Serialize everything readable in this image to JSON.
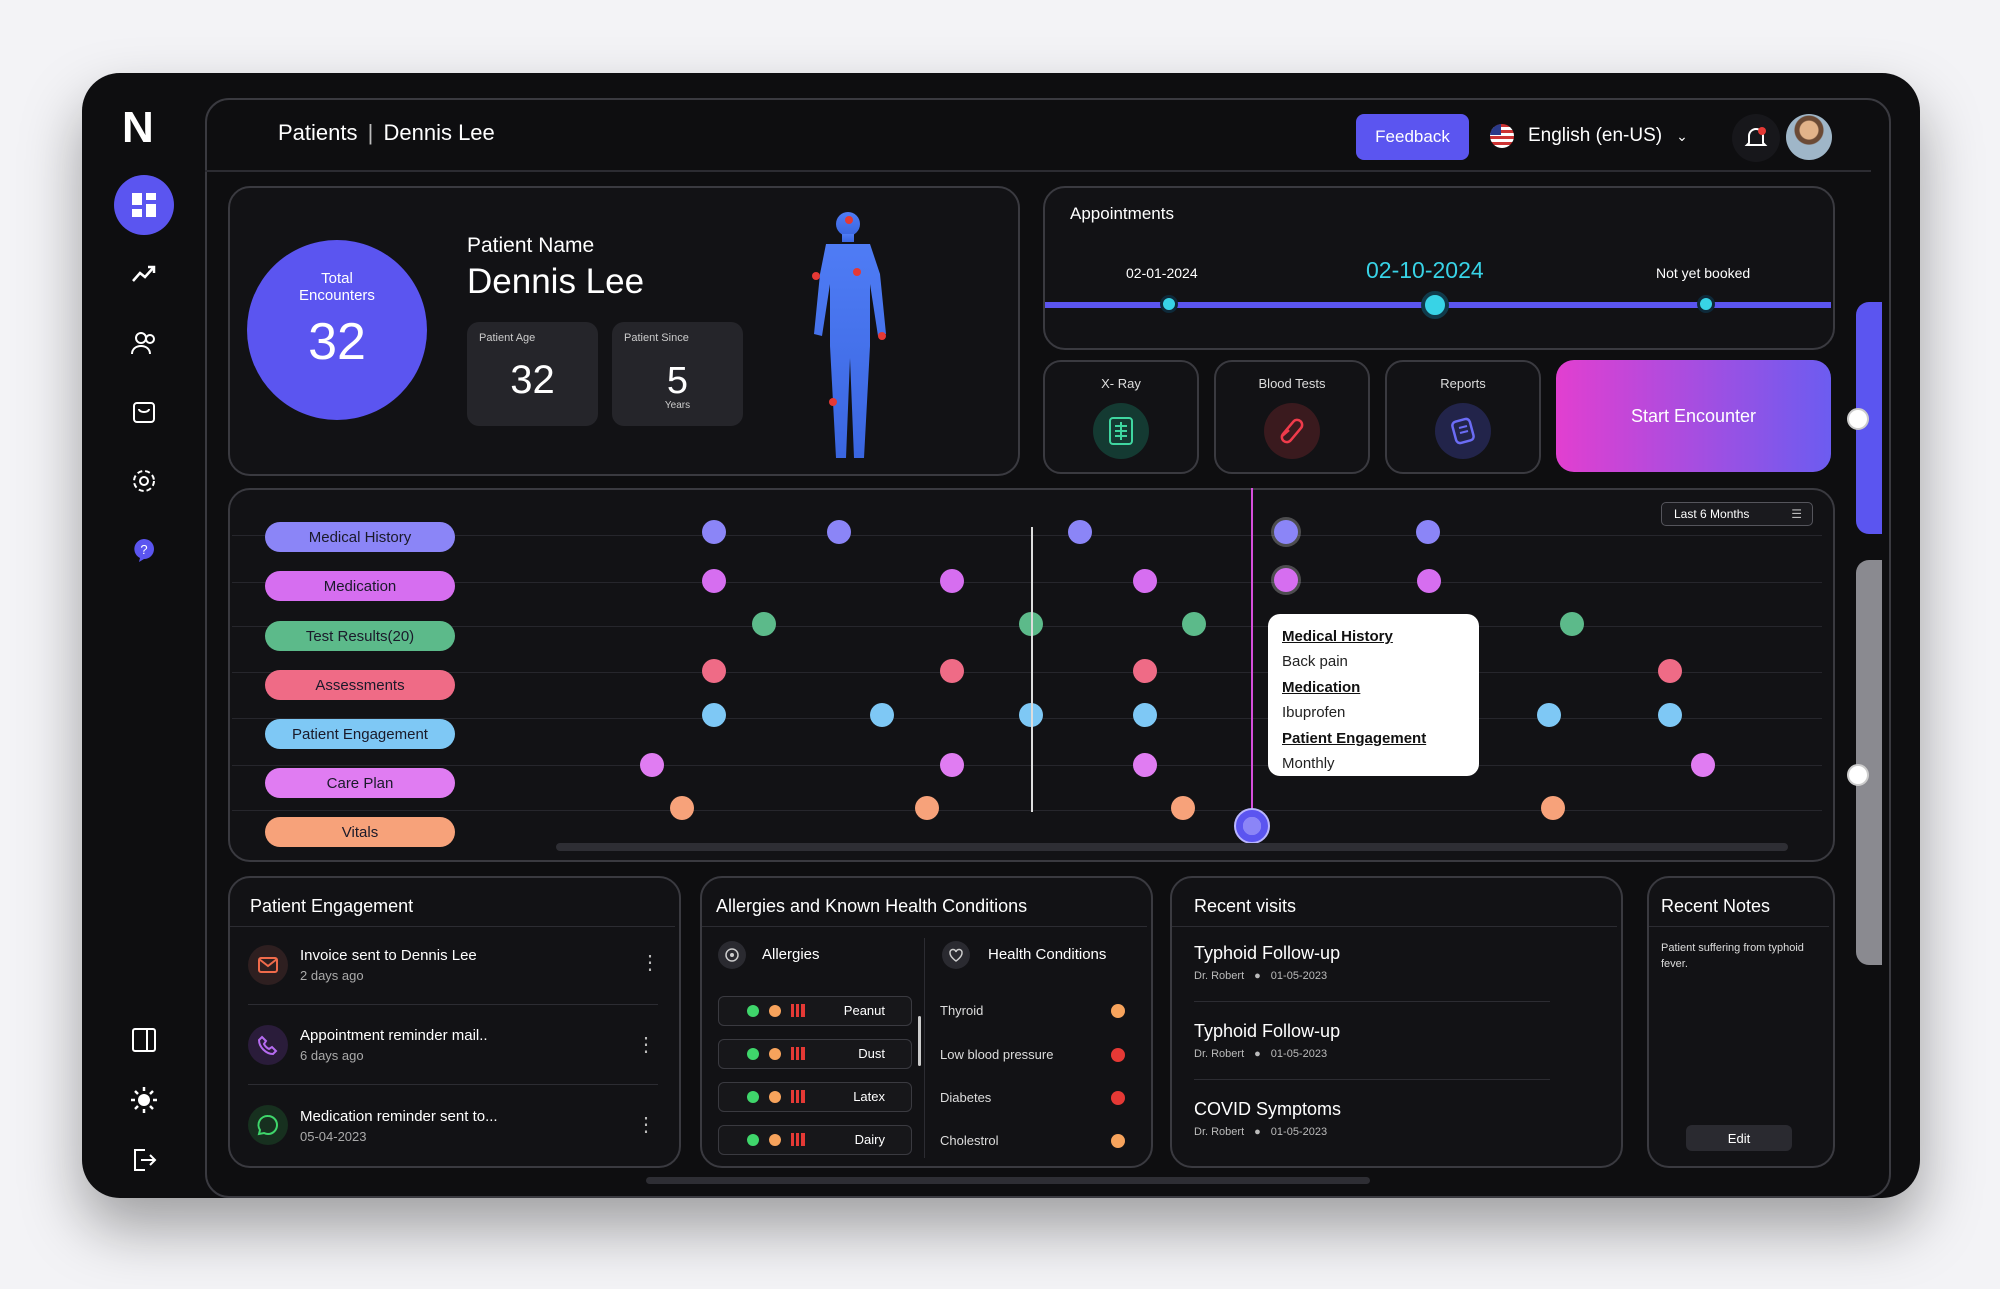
{
  "header": {
    "breadcrumb_root": "Patients",
    "breadcrumb_current": "Dennis Lee",
    "feedback_label": "Feedback",
    "language": "English (en-US)"
  },
  "sidebar": {
    "logo": "N",
    "items": [
      "dashboard-icon",
      "analytics-icon",
      "patients-icon",
      "calendar-icon",
      "settings-icon",
      "help-icon"
    ],
    "bottom": [
      "collapse-icon",
      "theme-icon",
      "logout-icon"
    ]
  },
  "summary": {
    "encounters_label_1": "Total",
    "encounters_label_2": "Encounters",
    "encounters_value": "32",
    "patient_name_label": "Patient Name",
    "patient_name": "Dennis Lee",
    "age_label": "Patient Age",
    "age_value": "32",
    "since_label": "Patient Since",
    "since_value": "5",
    "since_unit": "Years"
  },
  "appointments": {
    "title": "Appointments",
    "points": [
      "02-01-2024",
      "02-10-2024",
      "Not yet booked"
    ]
  },
  "quick_actions": [
    {
      "label": "X- Ray"
    },
    {
      "label": "Blood Tests"
    },
    {
      "label": "Reports"
    }
  ],
  "start_encounter_label": "Start Encounter",
  "timeline": {
    "filter": "Last 6 Months",
    "categories": [
      "Medical History",
      "Medication",
      "Test Results(20)",
      "Assessments",
      "Patient Engagement",
      "Care Plan",
      "Vitals"
    ],
    "colors": [
      "#8b85f7",
      "#d66ef0",
      "#5cba8a",
      "#ef6b86",
      "#7ec8f5",
      "#e07cf2",
      "#f7a27a"
    ],
    "tooltip": {
      "h1": "Medical History",
      "v1": "Back pain",
      "h2": "Medication",
      "v2": "Ibuprofen",
      "h3": "Patient Engagement",
      "v3": "Monthly"
    }
  },
  "engagement": {
    "title": "Patient Engagement",
    "items": [
      {
        "text": "Invoice sent to Dennis Lee",
        "time": "2 days ago",
        "icon": "mail-icon"
      },
      {
        "text": "Appointment reminder mail..",
        "time": "6 days ago",
        "icon": "phone-icon"
      },
      {
        "text": "Medication reminder sent to...",
        "time": "05-04-2023",
        "icon": "whatsapp-icon"
      }
    ]
  },
  "allergies": {
    "title": "Allergies and Known Health Conditions",
    "allergies_label": "Allergies",
    "conditions_label": "Health Conditions",
    "allergy_items": [
      "Peanut",
      "Dust",
      "Latex",
      "Dairy"
    ],
    "conditions": [
      {
        "name": "Thyroid",
        "color": "#f7a35c"
      },
      {
        "name": "Low blood pressure",
        "color": "#e53935"
      },
      {
        "name": "Diabetes",
        "color": "#e53935"
      },
      {
        "name": "Cholestrol",
        "color": "#f7a35c"
      }
    ]
  },
  "visits": {
    "title": "Recent visits",
    "items": [
      {
        "title": "Typhoid Follow-up",
        "doctor": "Dr. Robert",
        "date": "01-05-2023"
      },
      {
        "title": "Typhoid Follow-up",
        "doctor": "Dr. Robert",
        "date": "01-05-2023"
      },
      {
        "title": "COVID Symptoms",
        "doctor": "Dr. Robert",
        "date": "01-05-2023"
      }
    ]
  },
  "notes": {
    "title": "Recent Notes",
    "text": "Patient suffering from typhoid fever.",
    "edit_label": "Edit"
  }
}
